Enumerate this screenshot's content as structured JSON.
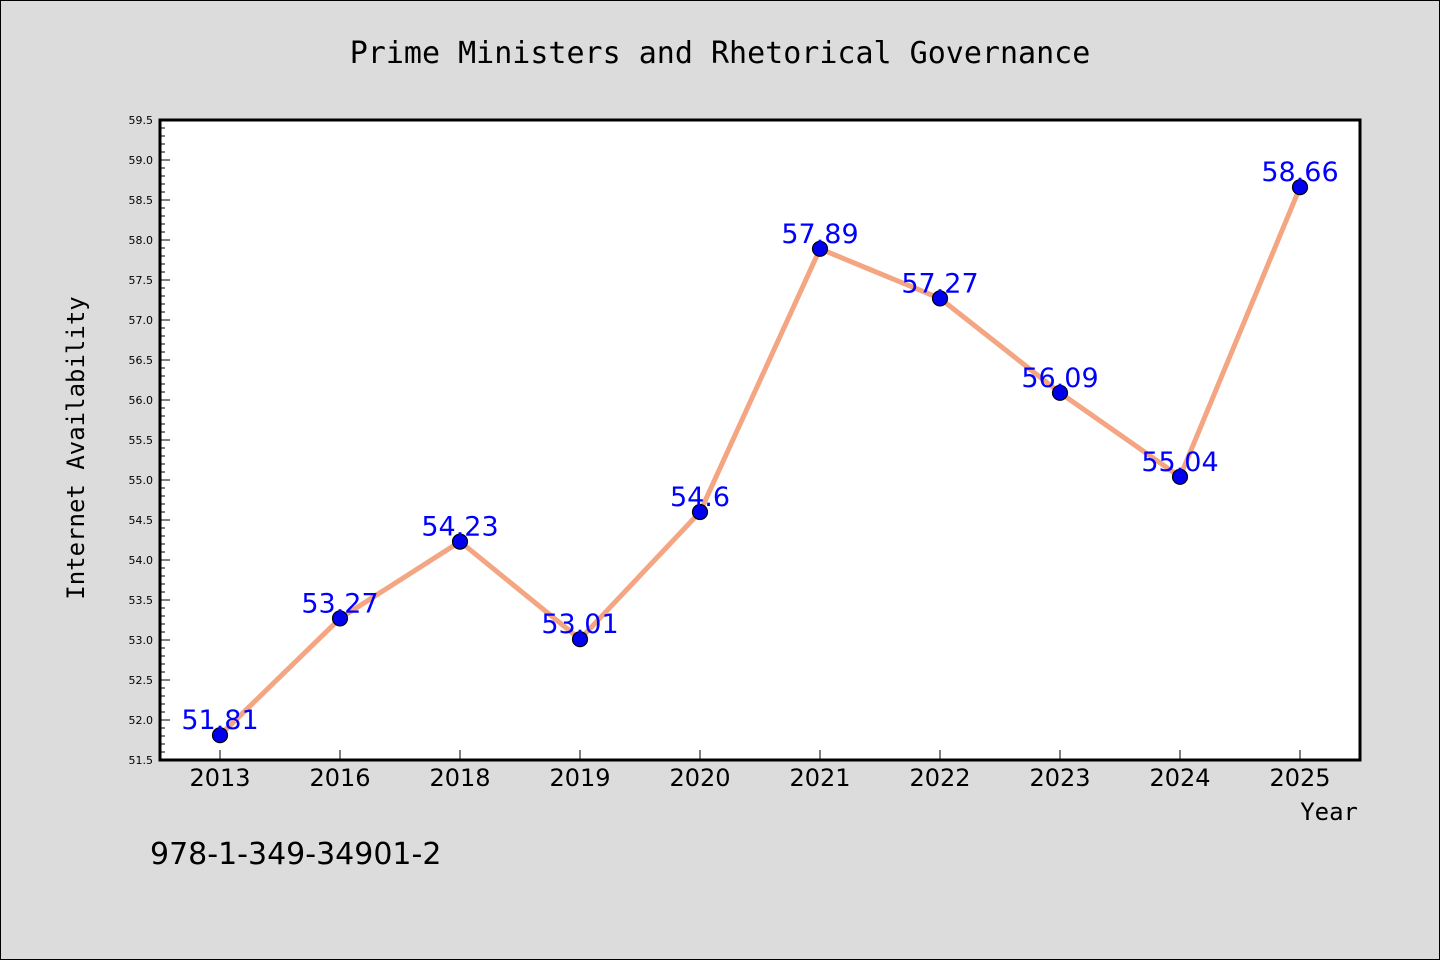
{
  "chart_data": {
    "type": "line",
    "title": "Prime Ministers and Rhetorical Governance",
    "xlabel": "Year",
    "ylabel": "Internet Availability",
    "categories": [
      "2013",
      "2016",
      "2018",
      "2019",
      "2020",
      "2021",
      "2022",
      "2023",
      "2024",
      "2025"
    ],
    "values": [
      51.81,
      53.27,
      54.23,
      53.01,
      54.6,
      57.89,
      57.27,
      56.09,
      55.04,
      58.66
    ],
    "data_labels": [
      "51.81",
      "53.27",
      "54.23",
      "53.01",
      "54.6",
      "57.89",
      "57.27",
      "56.09",
      "55.04",
      "58.66"
    ],
    "ylim": [
      51.5,
      59.5
    ],
    "yticks": [
      "51.5",
      "52.0",
      "52.5",
      "53.0",
      "53.5",
      "54.0",
      "54.5",
      "55.0",
      "55.5",
      "56.0",
      "56.5",
      "57.0",
      "57.5",
      "58.0",
      "58.5",
      "59.0",
      "59.5"
    ],
    "grid": false,
    "legend": "none",
    "colors": {
      "line": "#f4a582",
      "marker": "#0000ee",
      "label": "#0000ff",
      "background": "#dcdcdc",
      "plot_background": "#ffffff"
    }
  },
  "footnote": "978-1-349-34901-2"
}
